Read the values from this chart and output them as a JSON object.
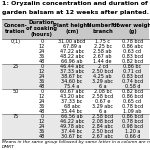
{
  "title1": "1: Oryzalin concentration and duration of treatment modified plant morphology of",
  "title2": "garden balsam at 12 weeks after planted.",
  "col_labels": [
    "Concen-\ntration",
    "Duration\nof soaking\n(hours)",
    "Plant height\n(cm)",
    "Number of\nbranch",
    "Flower weight\n(g)"
  ],
  "rows": [
    [
      "0(1)",
      "0",
      "31.00 abcd",
      "1.75 c",
      "0.78 bcd"
    ],
    [
      "",
      "12",
      "67.89 a",
      "2.25 bc",
      "0.86 abc"
    ],
    [
      "",
      "24",
      "47.22 abc",
      "2.58 ab",
      "0.63 cd"
    ],
    [
      "",
      "36",
      "48.22 abc",
      "2.67 ab",
      "0.83 bcd"
    ],
    [
      "",
      "48",
      "66.96 ab",
      "1.44 de",
      "0.82 bcd"
    ],
    [
      "25",
      "0",
      "46.44 abc",
      "2 cd",
      "0.86 bc"
    ],
    [
      "",
      "12",
      "37.33 abc",
      "2.50 bcd",
      "0.71 cd"
    ],
    [
      "",
      "24",
      "38.67 bc",
      "4.25 ab",
      "0.83 bcd"
    ],
    [
      "",
      "36",
      "34.60 bc",
      "3.29 abc",
      "0.74 bcd"
    ],
    [
      "",
      "48",
      "75.4 a",
      "6 a",
      "0.58 d"
    ],
    [
      "50",
      "0",
      "60.67 abc",
      "2.08 bc",
      "0.82 bcd"
    ],
    [
      "",
      "12",
      "43.20 abc",
      "2.58 bcd",
      "0.86 bcd"
    ],
    [
      "",
      "24",
      "37.33 bc",
      "0.67 e",
      "0.65 cd"
    ],
    [
      "",
      "36",
      "68 abc",
      "3.29 abc",
      "0.78 bcd"
    ],
    [
      "",
      "48",
      "35.44 bc",
      "6 a",
      "1.09 ab"
    ],
    [
      "75",
      "0",
      "66.56 ab",
      "2.58 bcd",
      "0.86 bcd"
    ],
    [
      "",
      "12",
      "46.22 abc",
      "2.08 bcd",
      "0.78 bcd"
    ],
    [
      "",
      "24",
      "49.78 abc",
      "2.84 abc",
      "0.98 bcd"
    ],
    [
      "",
      "36",
      "37.44 bc",
      "2.50 bcd",
      "1.20 a"
    ],
    [
      "",
      "48",
      "30.67 bc",
      "2.67 abc",
      "0.66 d"
    ]
  ],
  "footer": "Means in the same group followed by same letter in a column are not significantly diff...\nDMRT",
  "group_starts": [
    0,
    5,
    10,
    15
  ],
  "bg_white": "#ffffff",
  "bg_gray": "#e8e8e8",
  "header_bg": "#c8c8c8",
  "line_color": "#555555",
  "text_color": "#000000",
  "title_fontsize": 4.5,
  "header_fontsize": 3.8,
  "cell_fontsize": 3.5,
  "footer_fontsize": 3.2
}
